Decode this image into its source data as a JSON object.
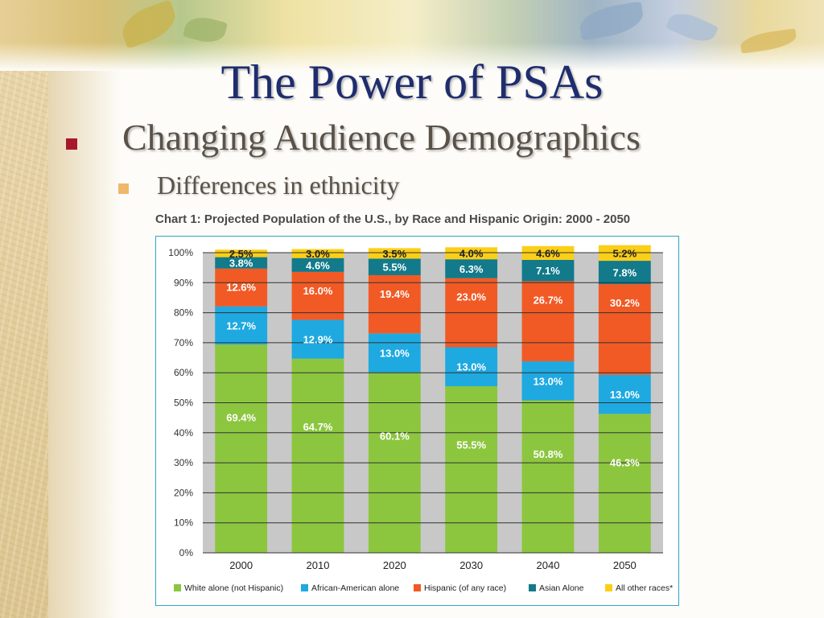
{
  "slide": {
    "title": "The Power of PSAs",
    "bullet_level1": "Changing Audience Demographics",
    "bullet_level2": "Differences in ethnicity"
  },
  "colors": {
    "title": "#1f2d6e",
    "bullet1": "#a7182c",
    "bullet2": "#f0b86a"
  },
  "chart_data": {
    "type": "bar",
    "stacked": true,
    "title": "Chart 1: Projected Population of the U.S., by Race and Hispanic Origin: 2000 - 2050",
    "categories": [
      "2000",
      "2010",
      "2020",
      "2030",
      "2040",
      "2050"
    ],
    "ylim": [
      0,
      100
    ],
    "yticks": [
      "0%",
      "10%",
      "20%",
      "30%",
      "40%",
      "50%",
      "60%",
      "70%",
      "80%",
      "90%",
      "100%"
    ],
    "grid": true,
    "legend_position": "bottom",
    "series": [
      {
        "name": "White alone (not Hispanic)",
        "color": "#8cc63f",
        "values": [
          69.4,
          64.7,
          60.1,
          55.5,
          50.8,
          46.3
        ],
        "labels": [
          "69.4%",
          "64.7%",
          "60.1%",
          "55.5%",
          "50.8%",
          "46.3%"
        ]
      },
      {
        "name": "African-American alone",
        "color": "#1ea9e1",
        "values": [
          12.7,
          12.9,
          13.0,
          13.0,
          13.0,
          13.0
        ],
        "labels": [
          "12.7%",
          "12.9%",
          "13.0%",
          "13.0%",
          "13.0%",
          "13.0%"
        ]
      },
      {
        "name": "Hispanic (of any race)",
        "color": "#f15a24",
        "values": [
          12.6,
          16.0,
          19.4,
          23.0,
          26.7,
          30.2
        ],
        "labels": [
          "12.6%",
          "16.0%",
          "19.4%",
          "23.0%",
          "26.7%",
          "30.2%"
        ]
      },
      {
        "name": "Asian Alone",
        "color": "#127a8a",
        "values": [
          3.8,
          4.6,
          5.5,
          6.3,
          7.1,
          7.8
        ],
        "labels": [
          "3.8%",
          "4.6%",
          "5.5%",
          "6.3%",
          "7.1%",
          "7.8%"
        ]
      },
      {
        "name": "All other races*",
        "color": "#fbcf17",
        "values": [
          2.5,
          3.0,
          3.5,
          4.0,
          4.6,
          5.2
        ],
        "labels": [
          "2.5%",
          "3.0%",
          "3.5%",
          "4.0%",
          "4.6%",
          "5.2%"
        ]
      }
    ]
  }
}
